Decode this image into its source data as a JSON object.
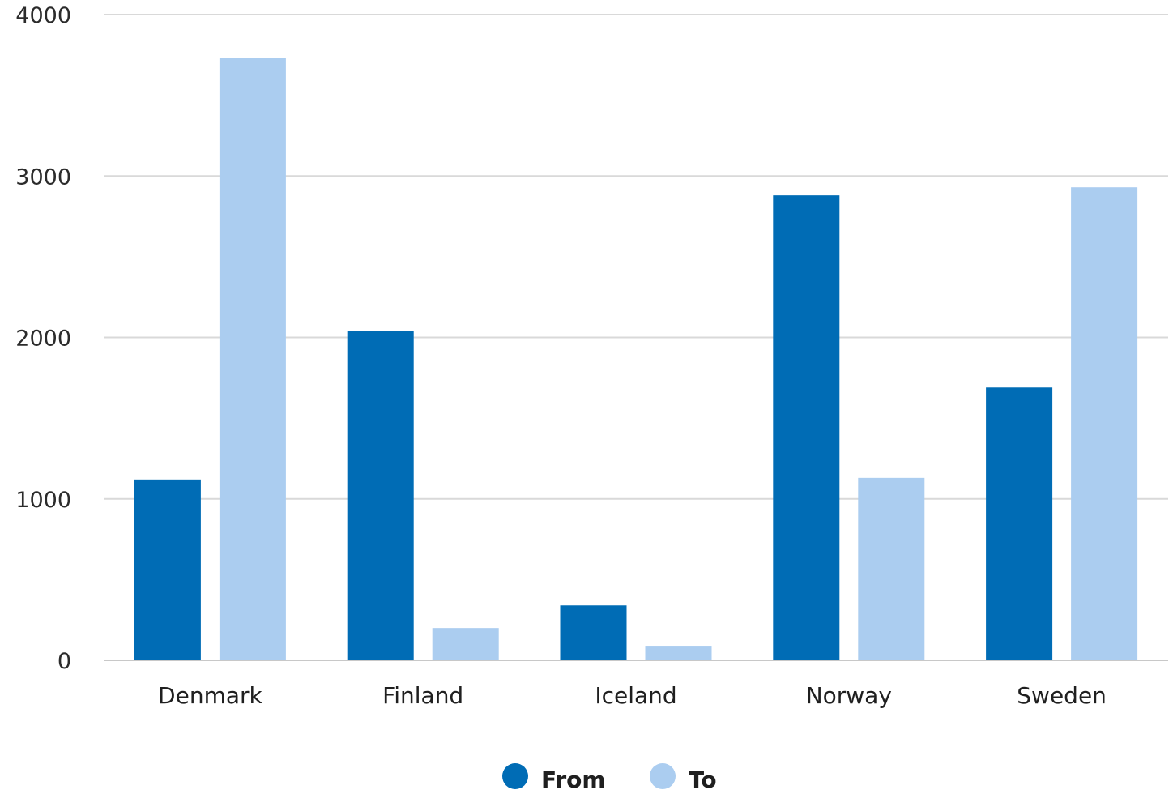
{
  "chart_data": {
    "type": "bar",
    "categories": [
      "Denmark",
      "Finland",
      "Iceland",
      "Norway",
      "Sweden"
    ],
    "series": [
      {
        "name": "From",
        "color": "#006cb5",
        "values": [
          1120,
          2040,
          340,
          2880,
          1690
        ]
      },
      {
        "name": "To",
        "color": "#abcdf0",
        "values": [
          3730,
          200,
          90,
          1130,
          2930
        ]
      }
    ],
    "ylim": [
      0,
      4000
    ],
    "yticks": [
      0,
      1000,
      2000,
      3000,
      4000
    ],
    "grid": true,
    "legend": "bottom-center"
  }
}
